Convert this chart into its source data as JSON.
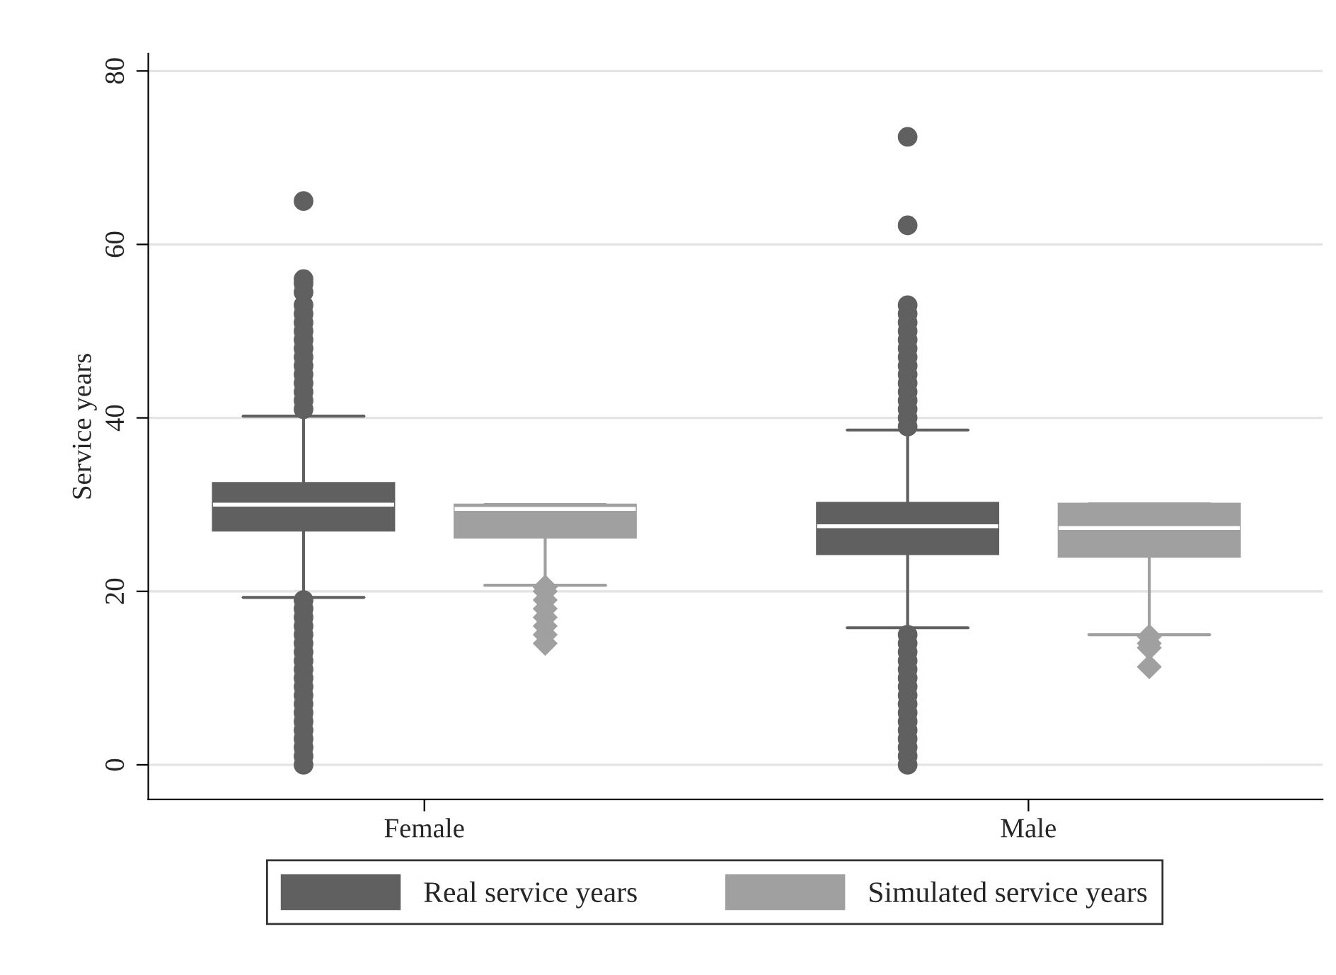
{
  "chart_data": {
    "type": "box",
    "ylabel": "Service years",
    "categories": [
      "Female",
      "Male"
    ],
    "ylim": [
      -4,
      82
    ],
    "yticks": [
      0,
      20,
      40,
      60,
      80
    ],
    "grid": "y",
    "legend": "bottom",
    "series": [
      {
        "name": "Real service years",
        "color": "#606060",
        "marker": "circle",
        "boxes": [
          {
            "low": 19.3,
            "q1": 27.0,
            "median": 30.0,
            "q3": 32.5,
            "high": 40.2,
            "outliers": [
              0,
              1,
              2,
              3,
              4,
              5,
              6,
              7,
              8,
              9,
              10,
              11,
              12,
              13,
              14,
              15,
              16,
              17,
              18,
              19,
              41,
              42,
              43,
              44,
              45,
              46,
              47,
              48,
              49,
              50,
              51,
              52,
              53,
              54.5,
              55.5,
              56,
              65
            ]
          },
          {
            "low": 15.8,
            "q1": 24.3,
            "median": 27.5,
            "q3": 30.2,
            "high": 38.6,
            "outliers": [
              0,
              1,
              2,
              3,
              4,
              5,
              6,
              7,
              8,
              9,
              10,
              11,
              12,
              13,
              14,
              15,
              39,
              40,
              41,
              42,
              43,
              44,
              45,
              46,
              47,
              48,
              49,
              50,
              51,
              52,
              53,
              62.2,
              72.4
            ]
          }
        ]
      },
      {
        "name": "Simulated service years",
        "color": "#a0a0a0",
        "marker": "diamond",
        "boxes": [
          {
            "low": 20.7,
            "q1": 26.2,
            "median": 29.5,
            "q3": 30.0,
            "high": 30.0,
            "outliers": [
              20.5,
              20,
              19,
              18,
              17,
              16,
              15,
              14
            ]
          },
          {
            "low": 15.0,
            "q1": 24.0,
            "median": 27.3,
            "q3": 30.1,
            "high": 30.1,
            "outliers": [
              14.8,
              14,
              13.5,
              11.3
            ]
          }
        ]
      }
    ]
  }
}
